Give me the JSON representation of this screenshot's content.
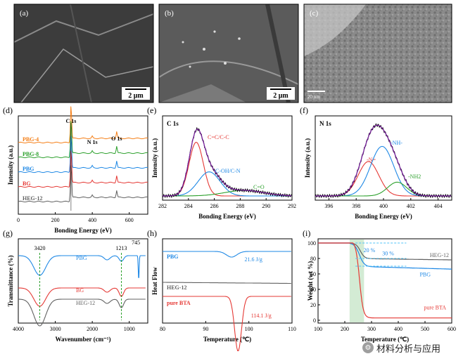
{
  "panels": {
    "a": {
      "label": "(a)",
      "scale": "2 μm"
    },
    "b": {
      "label": "(b)",
      "scale": "2 μm"
    },
    "c": {
      "label": "(c)",
      "scale": "20 nm"
    }
  },
  "watermark": "材料分析与应用",
  "chart_data": [
    {
      "id": "d",
      "label": "(d)",
      "type": "line",
      "xlabel": "Bonding Energy (eV)",
      "ylabel": "Intensity (a.u.)",
      "xlim": [
        0,
        700
      ],
      "xticks": [
        0,
        200,
        400,
        600
      ],
      "peaks": [
        {
          "name": "C 1s",
          "x": 285
        },
        {
          "name": "N 1s",
          "x": 400
        },
        {
          "name": "O 1s",
          "x": 532
        }
      ],
      "series": [
        {
          "name": "PBG-4",
          "color": "#f57f17",
          "offset": 4
        },
        {
          "name": "PBG-8",
          "color": "#2ca02c",
          "offset": 3
        },
        {
          "name": "PBG",
          "color": "#1e88e5",
          "offset": 2
        },
        {
          "name": "BG",
          "color": "#e53935",
          "offset": 1
        },
        {
          "name": "HEG-12",
          "color": "#616161",
          "offset": 0
        }
      ]
    },
    {
      "id": "e",
      "label": "(e)",
      "type": "line",
      "title": "C 1s",
      "xlabel": "Bonding Energy (eV)",
      "ylabel": "Intensity (a.u.)",
      "xlim": [
        282,
        292
      ],
      "xticks": [
        282,
        284,
        286,
        288,
        290,
        292
      ],
      "components": [
        {
          "name": "C=C/C-C",
          "center": 284.6,
          "amp": 0.78,
          "sigma": 0.55,
          "color": "#e53935"
        },
        {
          "name": "C-OH/C-N",
          "center": 285.6,
          "amp": 0.35,
          "sigma": 0.85,
          "color": "#1e88e5"
        },
        {
          "name": "C=O",
          "center": 288.3,
          "amp": 0.08,
          "sigma": 1.5,
          "color": "#2ca02c"
        }
      ]
    },
    {
      "id": "f",
      "label": "(f)",
      "type": "line",
      "title": "N 1s",
      "xlabel": "Bonding Energy (eV)",
      "ylabel": "Intensity (a.u.)",
      "xlim": [
        395,
        405
      ],
      "xticks": [
        396,
        398,
        400,
        402,
        404
      ],
      "components": [
        {
          "name": "-N=",
          "center": 398.9,
          "amp": 0.5,
          "sigma": 0.75,
          "color": "#e53935"
        },
        {
          "name": "-NH-",
          "center": 399.9,
          "amp": 0.72,
          "sigma": 0.85,
          "color": "#1e88e5"
        },
        {
          "name": "-NH2",
          "center": 401.0,
          "amp": 0.2,
          "sigma": 0.7,
          "color": "#2ca02c"
        }
      ]
    },
    {
      "id": "g",
      "label": "(g)",
      "type": "line",
      "xlabel": "Wavenumber (cm⁻¹)",
      "ylabel": "Transmittance (%)",
      "xlim": [
        4000,
        500
      ],
      "xticks": [
        4000,
        3000,
        2000,
        1000
      ],
      "annotations": [
        "3420",
        "1213",
        "745"
      ],
      "series": [
        {
          "name": "PBG",
          "color": "#1e88e5"
        },
        {
          "name": "BG",
          "color": "#e53935"
        },
        {
          "name": "HEG-12",
          "color": "#616161"
        }
      ]
    },
    {
      "id": "h",
      "label": "(h)",
      "type": "line",
      "xlabel": "Temperature (℃)",
      "ylabel": "Heat Flow",
      "xlim": [
        80,
        110
      ],
      "xticks": [
        80,
        90,
        100,
        110
      ],
      "series": [
        {
          "name": "PBG",
          "color": "#1e88e5",
          "enthalpy": "21.6 J/g",
          "peak": 96
        },
        {
          "name": "HEG-12",
          "color": "#616161"
        },
        {
          "name": "pure BTA",
          "color": "#e53935",
          "enthalpy": "114.1 J/g",
          "peak": 97.5
        }
      ]
    },
    {
      "id": "i",
      "label": "(i)",
      "type": "line",
      "xlabel": "Temperature (℃)",
      "ylabel": "Weight (wt %)",
      "xlim": [
        100,
        600
      ],
      "ylim": [
        0,
        100
      ],
      "xticks": [
        100,
        200,
        300,
        400,
        500,
        600
      ],
      "yticks": [
        0,
        20,
        40,
        60,
        80,
        100
      ],
      "annotations": [
        "20 %",
        "30 %"
      ],
      "series": [
        {
          "name": "HEG-12",
          "color": "#616161"
        },
        {
          "name": "PBG",
          "color": "#1e88e5"
        },
        {
          "name": "pure BTA",
          "color": "#e53935"
        }
      ]
    }
  ]
}
